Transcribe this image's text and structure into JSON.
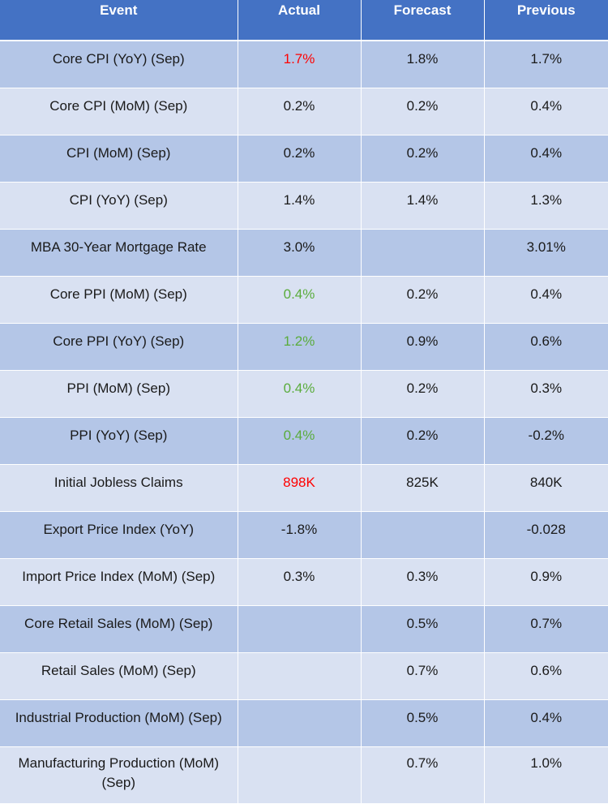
{
  "headers": {
    "event": "Event",
    "actual": "Actual",
    "forecast": "Forecast",
    "previous": "Previous"
  },
  "colors": {
    "header_bg": "#4472c4",
    "row_dark": "#b4c6e7",
    "row_light": "#d9e1f2",
    "actual_miss": "#ff0000",
    "actual_beat": "#5aac3c"
  },
  "rows": [
    {
      "event": "Core CPI (YoY) (Sep)",
      "actual": "1.7%",
      "forecast": "1.8%",
      "previous": "1.7%",
      "actual_status": "red"
    },
    {
      "event": "Core CPI (MoM) (Sep)",
      "actual": "0.2%",
      "forecast": "0.2%",
      "previous": "0.4%",
      "actual_status": "default"
    },
    {
      "event": "CPI (MoM) (Sep)",
      "actual": "0.2%",
      "forecast": "0.2%",
      "previous": "0.4%",
      "actual_status": "default"
    },
    {
      "event": "CPI (YoY) (Sep)",
      "actual": "1.4%",
      "forecast": "1.4%",
      "previous": "1.3%",
      "actual_status": "default"
    },
    {
      "event": "MBA 30-Year Mortgage Rate",
      "actual": "3.0%",
      "forecast": "",
      "previous": "3.01%",
      "actual_status": "default"
    },
    {
      "event": "Core PPI (MoM) (Sep)",
      "actual": "0.4%",
      "forecast": "0.2%",
      "previous": "0.4%",
      "actual_status": "green"
    },
    {
      "event": "Core PPI (YoY) (Sep)",
      "actual": "1.2%",
      "forecast": "0.9%",
      "previous": "0.6%",
      "actual_status": "green"
    },
    {
      "event": "PPI (MoM) (Sep)",
      "actual": "0.4%",
      "forecast": "0.2%",
      "previous": "0.3%",
      "actual_status": "green"
    },
    {
      "event": "PPI (YoY) (Sep)",
      "actual": "0.4%",
      "forecast": "0.2%",
      "previous": "-0.2%",
      "actual_status": "green"
    },
    {
      "event": "Initial Jobless Claims",
      "actual": "898K",
      "forecast": "825K",
      "previous": "840K",
      "actual_status": "red"
    },
    {
      "event": "Export Price Index (YoY)",
      "actual": "-1.8%",
      "forecast": "",
      "previous": "-0.028",
      "actual_status": "default"
    },
    {
      "event": "Import Price Index (MoM) (Sep)",
      "actual": "0.3%",
      "forecast": "0.3%",
      "previous": "0.9%",
      "actual_status": "default"
    },
    {
      "event": "Core Retail Sales (MoM) (Sep)",
      "actual": "",
      "forecast": "0.5%",
      "previous": "0.7%",
      "actual_status": "default"
    },
    {
      "event": "Retail Sales (MoM) (Sep)",
      "actual": "",
      "forecast": "0.7%",
      "previous": "0.6%",
      "actual_status": "default"
    },
    {
      "event": "Industrial Production (MoM) (Sep)",
      "actual": "",
      "forecast": "0.5%",
      "previous": "0.4%",
      "actual_status": "default"
    },
    {
      "event": "Manufacturing Production (MoM) (Sep)",
      "actual": "",
      "forecast": "0.7%",
      "previous": "1.0%",
      "actual_status": "default"
    }
  ]
}
